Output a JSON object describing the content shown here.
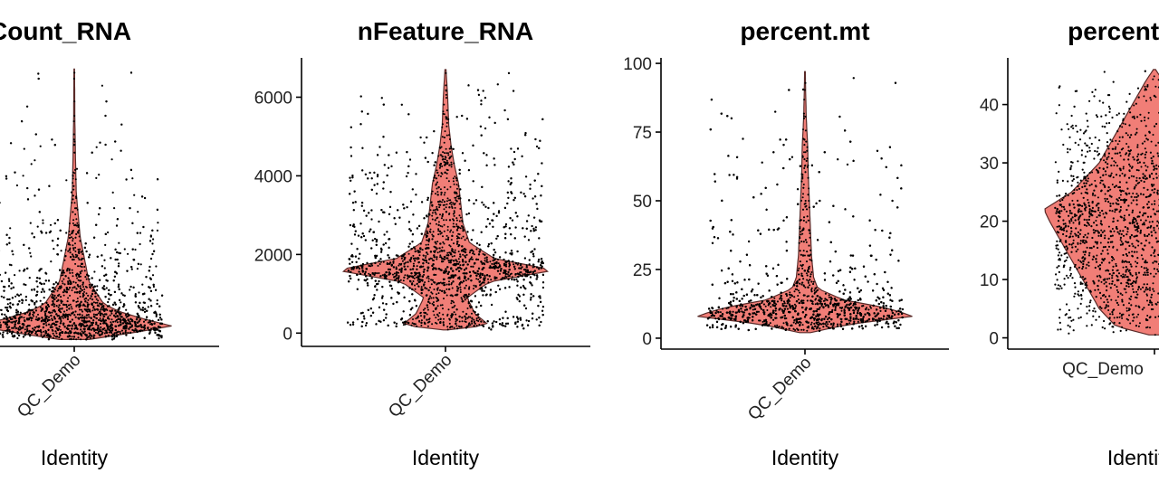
{
  "colors": {
    "violin_fill": "#F07068",
    "violin_stroke": "#5a2a28",
    "points": "#000000"
  },
  "chart_data": [
    {
      "type": "violin",
      "title": "nCount_RNA",
      "xlabel": "Identity",
      "categories": [
        "QC_Demo"
      ],
      "x_tick_rotation": 45,
      "ylim": [
        0,
        38000
      ],
      "yticks": [],
      "ytick_labels": [],
      "density_profile": [
        [
          200,
          0.15
        ],
        [
          1000,
          0.55
        ],
        [
          2000,
          1.0
        ],
        [
          3000,
          0.7
        ],
        [
          4000,
          0.45
        ],
        [
          5000,
          0.3
        ],
        [
          6000,
          0.25
        ],
        [
          8000,
          0.15
        ],
        [
          10000,
          0.12
        ],
        [
          12000,
          0.09
        ],
        [
          14000,
          0.06
        ],
        [
          17000,
          0.04
        ],
        [
          20000,
          0.02
        ],
        [
          25000,
          0.012
        ],
        [
          30000,
          0.006
        ],
        [
          36500,
          0.003
        ]
      ],
      "points": {
        "count": 2200,
        "median": 3000,
        "spread": 0.42,
        "max": 36500
      }
    },
    {
      "type": "violin",
      "title": "nFeature_RNA",
      "xlabel": "Identity",
      "categories": [
        "QC_Demo"
      ],
      "x_tick_rotation": 45,
      "ylim": [
        -200,
        7000
      ],
      "yticks": [
        0,
        2000,
        4000,
        6000
      ],
      "ytick_labels": [
        "0",
        "2000",
        "4000",
        "6000"
      ],
      "density_profile": [
        [
          80,
          0.02
        ],
        [
          200,
          0.4
        ],
        [
          500,
          0.27
        ],
        [
          900,
          0.2
        ],
        [
          1300,
          0.4
        ],
        [
          1600,
          1.0
        ],
        [
          1900,
          0.45
        ],
        [
          2300,
          0.22
        ],
        [
          2800,
          0.16
        ],
        [
          3300,
          0.14
        ],
        [
          3800,
          0.12
        ],
        [
          4300,
          0.08
        ],
        [
          4800,
          0.05
        ],
        [
          5300,
          0.03
        ],
        [
          6000,
          0.02
        ],
        [
          6700,
          0.005
        ]
      ],
      "points": {
        "count": 2400,
        "median": 1600,
        "spread": 0.5,
        "max": 6700
      }
    },
    {
      "type": "violin",
      "title": "percent.mt",
      "xlabel": "Identity",
      "categories": [
        "QC_Demo"
      ],
      "x_tick_rotation": 45,
      "ylim": [
        -2,
        102
      ],
      "yticks": [
        0,
        25,
        50,
        75,
        100
      ],
      "ytick_labels": [
        "0",
        "25",
        "50",
        "75",
        "100"
      ],
      "density_profile": [
        [
          2,
          0.05
        ],
        [
          5,
          0.4
        ],
        [
          8,
          1.0
        ],
        [
          11,
          0.75
        ],
        [
          14,
          0.35
        ],
        [
          18,
          0.12
        ],
        [
          22,
          0.08
        ],
        [
          30,
          0.06
        ],
        [
          40,
          0.05
        ],
        [
          50,
          0.04
        ],
        [
          60,
          0.03
        ],
        [
          70,
          0.025
        ],
        [
          80,
          0.012
        ],
        [
          90,
          0.006
        ],
        [
          97,
          0.003
        ]
      ],
      "points": {
        "count": 2400,
        "median": 9,
        "spread": 0.4,
        "max": 97
      }
    },
    {
      "type": "violin",
      "title": "percent.ribo",
      "xlabel": "Identity",
      "categories": [
        "QC_Demo"
      ],
      "x_tick_rotation": 0,
      "ylim": [
        -1,
        48
      ],
      "yticks": [
        0,
        10,
        20,
        30,
        40
      ],
      "ytick_labels": [
        "0",
        "10",
        "20",
        "30",
        "40"
      ],
      "density_profile": [
        [
          0.5,
          0.05
        ],
        [
          2,
          0.35
        ],
        [
          5,
          0.5
        ],
        [
          10,
          0.65
        ],
        [
          15,
          0.8
        ],
        [
          20,
          0.95
        ],
        [
          22,
          1.0
        ],
        [
          25,
          0.75
        ],
        [
          30,
          0.5
        ],
        [
          35,
          0.35
        ],
        [
          40,
          0.2
        ],
        [
          44,
          0.08
        ],
        [
          46,
          0.01
        ]
      ],
      "points": {
        "count": 1800,
        "median": 20,
        "spread": 0.5,
        "max": 46
      }
    }
  ]
}
